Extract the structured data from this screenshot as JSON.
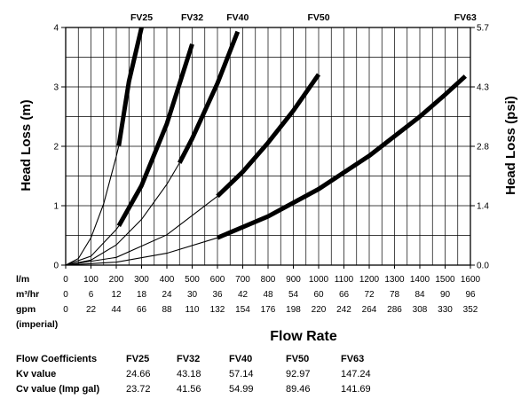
{
  "chart_data": {
    "type": "line",
    "title": "",
    "xlabel": "Flow Rate",
    "ylabel": "Head Loss (m)",
    "ylabel_right": "Head Loss (psi)",
    "x_unit_primary": "l/m",
    "xlim": [
      0,
      1600
    ],
    "ylim": [
      0,
      4
    ],
    "grid": true,
    "x_ticks": [
      0,
      100,
      200,
      300,
      400,
      500,
      600,
      700,
      800,
      900,
      1000,
      1100,
      1200,
      1300,
      1400,
      1500,
      1600
    ],
    "y_ticks": [
      0,
      1,
      2,
      3,
      4
    ],
    "y_right_ticks": [
      {
        "at": 0,
        "label": "0.0"
      },
      {
        "at": 1,
        "label": "1.4"
      },
      {
        "at": 2,
        "label": "2.8"
      },
      {
        "at": 3,
        "label": "4.3"
      },
      {
        "at": 4,
        "label": "5.7"
      }
    ],
    "x_scales": [
      {
        "label": "l/m",
        "values": [
          "0",
          "100",
          "200",
          "300",
          "400",
          "500",
          "600",
          "700",
          "800",
          "900",
          "1000",
          "1100",
          "1200",
          "1300",
          "1400",
          "1500",
          "1600"
        ]
      },
      {
        "label": "m³/hr",
        "values": [
          "0",
          "6",
          "12",
          "18",
          "24",
          "30",
          "36",
          "42",
          "48",
          "54",
          "60",
          "66",
          "72",
          "78",
          "84",
          "90",
          "96"
        ]
      },
      {
        "label": "gpm",
        "values": [
          "0",
          "22",
          "44",
          "66",
          "88",
          "110",
          "132",
          "154",
          "176",
          "198",
          "220",
          "242",
          "264",
          "286",
          "308",
          "330",
          "352"
        ]
      }
    ],
    "x_scales_note": "(imperial)",
    "series": [
      {
        "name": "FV25",
        "kv": 24.66,
        "thick_from_x": 210,
        "x": [
          0,
          50,
          100,
          150,
          200,
          210,
          250,
          300
        ],
        "y": [
          0,
          0.11,
          0.46,
          1.03,
          1.83,
          2.01,
          3.09,
          4.0
        ]
      },
      {
        "name": "FV32",
        "kv": 43.18,
        "thick_from_x": 210,
        "x": [
          0,
          100,
          200,
          210,
          300,
          400,
          500
        ],
        "y": [
          0,
          0.15,
          0.6,
          0.66,
          1.34,
          2.38,
          3.72
        ]
      },
      {
        "name": "FV40",
        "kv": 57.14,
        "thick_from_x": 450,
        "x": [
          0,
          100,
          200,
          300,
          400,
          450,
          500,
          600,
          680
        ],
        "y": [
          0,
          0.085,
          0.34,
          0.77,
          1.36,
          1.72,
          2.13,
          3.06,
          3.93
        ]
      },
      {
        "name": "FV50",
        "kv": 92.97,
        "thick_from_x": 600,
        "x": [
          0,
          200,
          400,
          600,
          700,
          800,
          900,
          1000
        ],
        "y": [
          0,
          0.13,
          0.51,
          1.16,
          1.57,
          2.06,
          2.6,
          3.21
        ]
      },
      {
        "name": "FV63",
        "kv": 147.24,
        "thick_from_x": 600,
        "x": [
          0,
          200,
          400,
          600,
          800,
          1000,
          1200,
          1400,
          1500,
          1580
        ],
        "y": [
          0,
          0.05,
          0.2,
          0.46,
          0.82,
          1.28,
          1.84,
          2.5,
          2.87,
          3.18
        ]
      }
    ]
  },
  "coefficients": {
    "header": [
      "Flow Coefficients",
      "FV25",
      "FV32",
      "FV40",
      "FV50",
      "FV63"
    ],
    "rows": [
      {
        "label": "Kv value",
        "values": [
          "24.66",
          "43.18",
          "57.14",
          "92.97",
          "147.24"
        ]
      },
      {
        "label": "Cv value (Imp gal)",
        "values": [
          "23.72",
          "41.56",
          "54.99",
          "89.46",
          "141.69"
        ]
      }
    ]
  },
  "colors": {
    "line": "#000000",
    "grid": "#000000",
    "background": "#ffffff"
  }
}
